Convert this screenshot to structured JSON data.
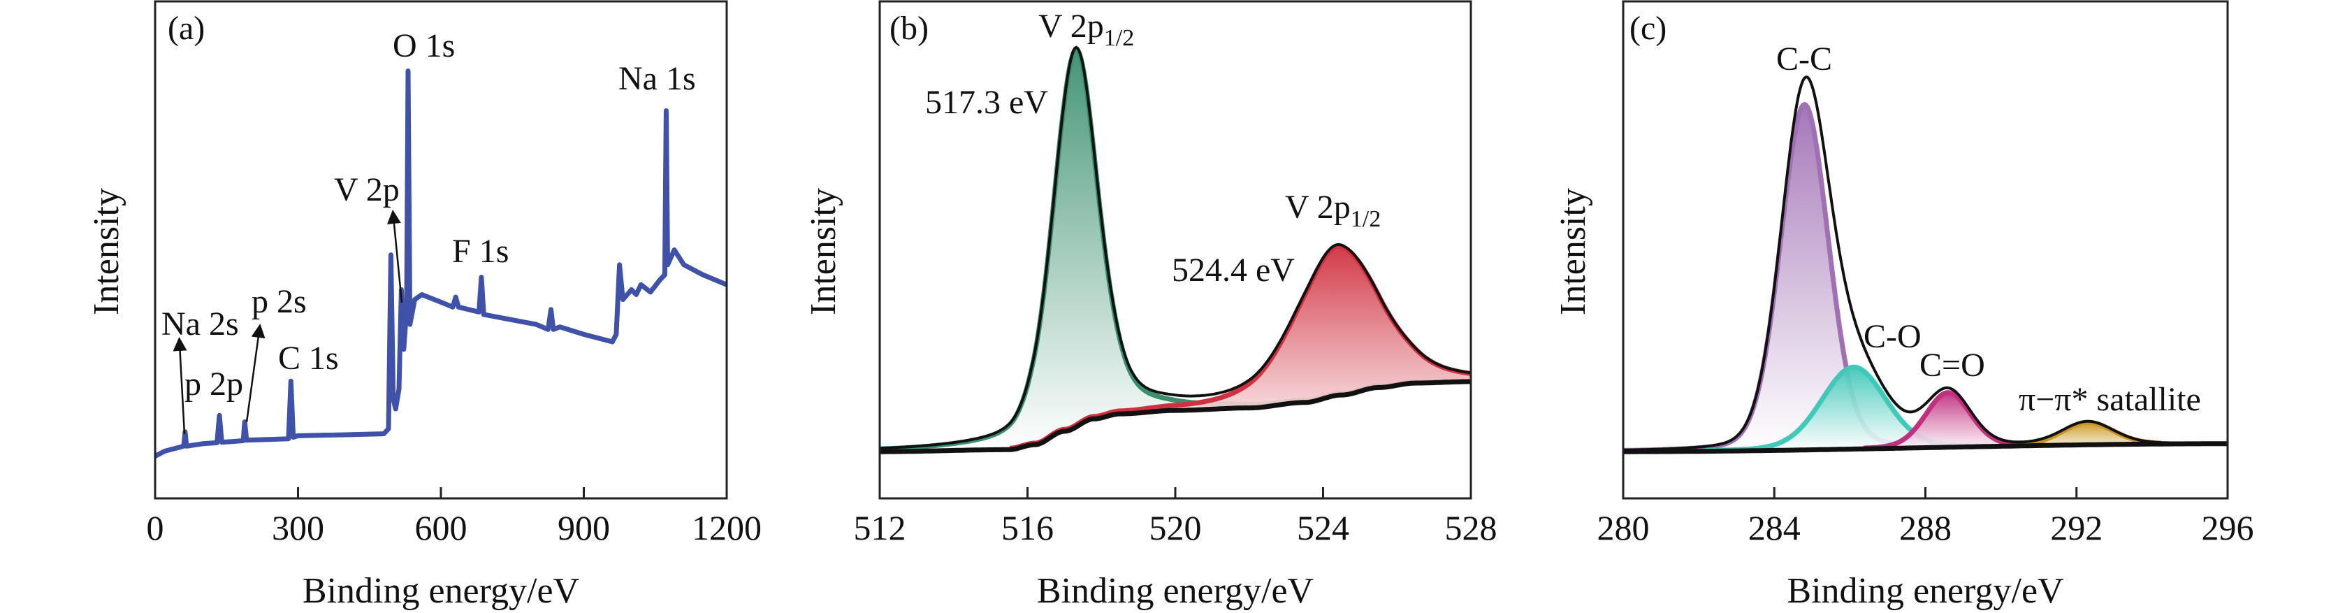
{
  "chart_data": [
    {
      "type": "line",
      "panel_label": "(a)",
      "xlabel": "Binding energy/eV",
      "ylabel": "Intensity",
      "xlim": [
        0,
        1200
      ],
      "ylim": [
        0,
        100
      ],
      "xticks": [
        0,
        300,
        600,
        900,
        1200
      ],
      "grid": false,
      "color": "#3f51a8",
      "series": [
        {
          "x": [
            0,
            20,
            40,
            60,
            63,
            66,
            100,
            130,
            135,
            140,
            185,
            188,
            192,
            280,
            285,
            290,
            300,
            400,
            480,
            490,
            495,
            500,
            505,
            512,
            517,
            522,
            528,
            531,
            535,
            545,
            560,
            600,
            625,
            631,
            637,
            680,
            685,
            690,
            800,
            825,
            831,
            836,
            850,
            900,
            960,
            968,
            975,
            982,
            1000,
            1010,
            1020,
            1040,
            1060,
            1070,
            1073,
            1076,
            1090,
            1110,
            1150,
            1200
          ],
          "y": [
            8.5,
            9.5,
            10,
            10.5,
            13.4,
            10.5,
            11,
            11.2,
            16.7,
            11.3,
            11.6,
            15.4,
            11.7,
            12,
            23.6,
            12.3,
            12.6,
            12.8,
            13,
            14,
            49,
            20,
            18,
            22,
            42,
            30,
            38,
            86,
            35,
            40,
            41,
            39.5,
            38.5,
            40.5,
            38.5,
            37.5,
            44.5,
            37,
            35,
            34,
            38,
            34,
            34.5,
            33,
            31.5,
            33,
            47,
            40,
            42,
            41,
            43,
            41.5,
            44,
            45,
            78,
            47,
            50,
            47,
            45,
            43
          ]
        }
      ],
      "annotations": [
        {
          "text": "O 1s"
        },
        {
          "text": "Na 1s"
        },
        {
          "text": "V 2p"
        },
        {
          "text": "F 1s"
        },
        {
          "text": "p 2s"
        },
        {
          "text": "Na 2s"
        },
        {
          "text": "C 1s"
        },
        {
          "text": "p 2p"
        }
      ]
    },
    {
      "type": "area",
      "panel_label": "(b)",
      "xlabel": "Binding energy/eV",
      "ylabel": "Intensity",
      "xlim": [
        512,
        528
      ],
      "ylim": [
        0,
        100
      ],
      "xticks": [
        512,
        516,
        520,
        524,
        528
      ],
      "grid": false,
      "background": {
        "color": "#111111",
        "x": [
          512,
          515.5,
          516.2,
          517,
          517.8,
          518.5,
          520,
          522,
          523.5,
          524.5,
          525.5,
          526.5,
          528
        ],
        "y": [
          9.4,
          9.8,
          10.8,
          13.5,
          16,
          17,
          17.7,
          18.2,
          19.3,
          20.8,
          22.3,
          23.2,
          23.5
        ]
      },
      "components": [
        {
          "center": 517.3,
          "amplitude": 76,
          "fwhm": 1.45,
          "color": "#3a8f6f"
        },
        {
          "center": 524.4,
          "amplitude": 30,
          "fwhm": 2.7,
          "color": "#d0303f"
        }
      ],
      "envelope_color": "#111111",
      "annotations": [
        {
          "text": "V 2p",
          "sub": "1/2"
        },
        {
          "text": "517.3 eV"
        },
        {
          "text": "V 2p",
          "sub": "1/2"
        },
        {
          "text": "524.4 eV"
        }
      ]
    },
    {
      "type": "area",
      "panel_label": "(c)",
      "xlabel": "Binding energy/eV",
      "ylabel": "Intensity",
      "xlim": [
        280,
        296
      ],
      "ylim": [
        0,
        100
      ],
      "xticks": [
        280,
        284,
        288,
        292,
        296
      ],
      "grid": false,
      "background": {
        "color": "#111111",
        "x": [
          280,
          296
        ],
        "y": [
          9.4,
          11
        ]
      },
      "components": [
        {
          "name": "C-C",
          "center": 284.8,
          "amplitude": 69.5,
          "fwhm": 1.5,
          "color": "#a070b4"
        },
        {
          "name": "C-O",
          "center": 286.1,
          "amplitude": 16.5,
          "fwhm": 2.0,
          "color": "#40c8b8"
        },
        {
          "name": "C=O",
          "center": 288.6,
          "amplitude": 11,
          "fwhm": 1.4,
          "color": "#c0307f"
        },
        {
          "name": "π−π* satallite",
          "center": 292.3,
          "amplitude": 4.5,
          "fwhm": 1.6,
          "color": "#c8961e"
        }
      ],
      "envelope_color": "#111111",
      "annotations": [
        {
          "text": "C-C"
        },
        {
          "text": "C-O"
        },
        {
          "text": "C=O"
        },
        {
          "text": "π−π* satallite"
        }
      ]
    }
  ]
}
